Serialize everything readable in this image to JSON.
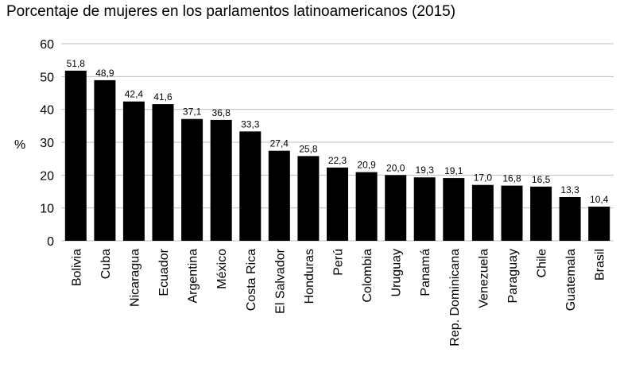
{
  "chart_data": {
    "type": "bar",
    "title": "Porcentaje de mujeres en los parlamentos latinoamericanos (2015)",
    "ylabel": "%",
    "xlabel": "",
    "ylim": [
      0,
      60
    ],
    "yticks": [
      0,
      10,
      20,
      30,
      40,
      50,
      60
    ],
    "grid": true,
    "bar_color": "#000000",
    "grid_color": "#bfbfbf",
    "categories": [
      "Bolivia",
      "Cuba",
      "Nicaragua",
      "Ecuador",
      "Argentina",
      "México",
      "Costa Rica",
      "El Salvador",
      "Honduras",
      "Perú",
      "Colombia",
      "Uruguay",
      "Panamá",
      "Rep. Dominicana",
      "Venezuela",
      "Paraguay",
      "Chile",
      "Guatemala",
      "Brasil"
    ],
    "values": [
      51.8,
      48.9,
      42.4,
      41.6,
      37.1,
      36.8,
      33.3,
      27.4,
      25.8,
      22.3,
      20.9,
      20.0,
      19.3,
      19.1,
      17.0,
      16.8,
      16.5,
      13.3,
      10.4
    ],
    "value_labels": [
      "51,8",
      "48,9",
      "42,4",
      "41,6",
      "37,1",
      "36,8",
      "33,3",
      "27,4",
      "25,8",
      "22,3",
      "20,9",
      "20,0",
      "19,3",
      "19,1",
      "17,0",
      "16,8",
      "16,5",
      "13,3",
      "10,4"
    ]
  }
}
